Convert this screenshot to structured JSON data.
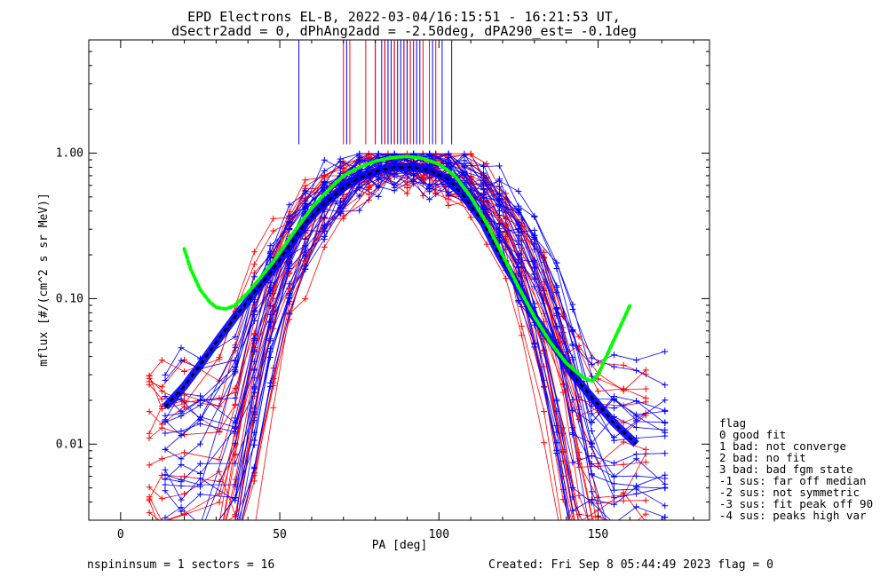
{
  "chart_data": {
    "type": "line",
    "title_line1": "EPD Electrons EL-B, 2022-03-04/16:15:51 - 16:21:53 UT,",
    "title_line2": "dSectr2add = 0, dPhAng2add = -2.50deg, dPA290_est=  -0.1deg",
    "xlabel": "PA [deg]",
    "ylabel": "mflux [#/(cm^2 s sr MeV)]",
    "xlim": [
      -10,
      185
    ],
    "ylim": [
      0.003,
      6
    ],
    "y_scale": "log",
    "x_ticks": [
      0,
      50,
      100,
      150
    ],
    "x_tick_labels": [
      "0",
      "50",
      "100",
      "150"
    ],
    "y_ticks": [
      0.01,
      0.1,
      1.0
    ],
    "y_tick_labels": [
      "0.01",
      "0.10",
      "1.00"
    ],
    "colors": {
      "red": "#ff0000",
      "blue": "#0000ff",
      "green": "#00ff00",
      "black": "#000000"
    },
    "red_pa": [
      9,
      13,
      20,
      31,
      36,
      42,
      48,
      53,
      58,
      64,
      70,
      78,
      84,
      90,
      95,
      99,
      103,
      110,
      115,
      121,
      126,
      133,
      139,
      144,
      150,
      158,
      165
    ],
    "blue_pa": [
      14,
      19,
      25,
      36,
      42,
      47,
      53,
      58,
      64,
      69,
      75,
      81,
      86,
      92,
      97,
      103,
      108,
      114,
      119,
      125,
      130,
      137,
      142,
      148,
      155,
      162,
      171
    ],
    "fit_curve": {
      "pa": [
        20,
        22,
        25,
        28,
        30,
        33,
        36,
        40,
        44,
        48,
        52,
        56,
        60,
        65,
        70,
        75,
        80,
        85,
        90,
        95,
        100,
        105,
        110,
        115,
        120,
        125,
        130,
        135,
        140,
        145,
        148,
        150,
        153,
        156,
        158,
        160
      ],
      "flux": [
        0.22,
        0.16,
        0.115,
        0.095,
        0.087,
        0.085,
        0.09,
        0.11,
        0.14,
        0.18,
        0.24,
        0.32,
        0.42,
        0.55,
        0.7,
        0.8,
        0.88,
        0.93,
        0.95,
        0.92,
        0.84,
        0.7,
        0.5,
        0.33,
        0.2,
        0.12,
        0.075,
        0.05,
        0.036,
        0.029,
        0.027,
        0.03,
        0.042,
        0.058,
        0.072,
        0.09
      ]
    },
    "median_curve": {
      "pa": [
        14,
        20,
        25,
        30,
        36,
        42,
        48,
        53,
        58,
        64,
        70,
        75,
        81,
        86,
        92,
        97,
        103,
        108,
        114,
        119,
        125,
        130,
        137,
        142,
        148,
        155,
        162
      ],
      "flux": [
        0.018,
        0.025,
        0.035,
        0.05,
        0.075,
        0.11,
        0.16,
        0.23,
        0.33,
        0.45,
        0.58,
        0.68,
        0.76,
        0.8,
        0.8,
        0.76,
        0.66,
        0.5,
        0.33,
        0.2,
        0.12,
        0.075,
        0.045,
        0.03,
        0.021,
        0.014,
        0.01
      ]
    },
    "peak_markers": {
      "blue_pa": [
        56,
        71,
        80,
        82,
        83,
        84,
        85,
        86,
        87,
        88,
        89,
        90,
        91,
        92,
        93,
        94,
        98,
        101,
        104
      ],
      "red_pa": [
        70,
        72,
        77,
        80,
        83,
        86,
        89,
        91,
        92,
        95,
        97,
        99
      ],
      "flux_range": [
        1.15,
        6
      ]
    },
    "legend": {
      "title": "flag",
      "items": [
        "0 good fit",
        "1 bad: not converge",
        "2 bad: no fit",
        "3 bad: bad fgm state",
        "-1 sus: far off median",
        "-2 sus: not symmetric",
        "-3 sus: fit peak off 90",
        "-4 sus: peaks high var"
      ]
    }
  },
  "footer": {
    "left": "nspininsum =  1  sectors = 16",
    "right": "Created: Fri Sep  8 05:44:49 2023   flag = 0"
  }
}
